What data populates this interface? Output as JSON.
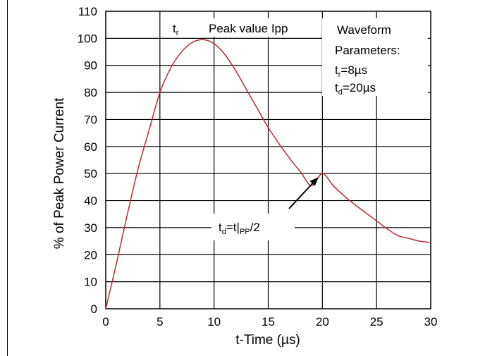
{
  "chart_data": {
    "type": "line",
    "title": "",
    "xlabel": "t-Time (µs)",
    "ylabel": "% of Peak Power Current",
    "xlim": [
      0,
      30
    ],
    "ylim": [
      0,
      110
    ],
    "x_ticks": [
      "0",
      "5",
      "10",
      "15",
      "20",
      "25",
      "30"
    ],
    "y_ticks": [
      "0",
      "10",
      "20",
      "30",
      "40",
      "50",
      "60",
      "70",
      "80",
      "90",
      "100",
      "110"
    ],
    "grid": true,
    "line_color": "#c0272d",
    "series": [
      {
        "x": [
          0,
          1,
          2,
          3,
          4,
          5,
          6,
          7,
          8,
          9,
          10,
          11,
          12,
          13,
          14,
          15,
          16,
          17,
          18,
          19,
          20,
          21,
          22,
          23,
          24,
          25,
          26,
          27,
          28,
          29,
          30
        ],
        "values": [
          0,
          17,
          35,
          52,
          66,
          80,
          89,
          95,
          98.5,
          99.5,
          98,
          94,
          88,
          81,
          74,
          67,
          61,
          55.5,
          50.5,
          45.5,
          50,
          45.5,
          41.8,
          38.5,
          35.5,
          32.5,
          29.5,
          27,
          26,
          25,
          24.5
        ]
      }
    ],
    "annotations": {
      "tr": {
        "main": "t",
        "sub": "r"
      },
      "peak_label": "Peak value Ipp",
      "td_formula": {
        "main1": "t",
        "sub1": "d",
        "mid": "=t|",
        "sub2": "PP",
        "end": "/2"
      },
      "params_title_1": "Waveform",
      "params_title_2": "Parameters:",
      "param_tr": {
        "main": "t",
        "sub": "r",
        "value": "=8µs"
      },
      "param_td": {
        "main": "t",
        "sub": "d",
        "value": "=20µs"
      }
    }
  }
}
